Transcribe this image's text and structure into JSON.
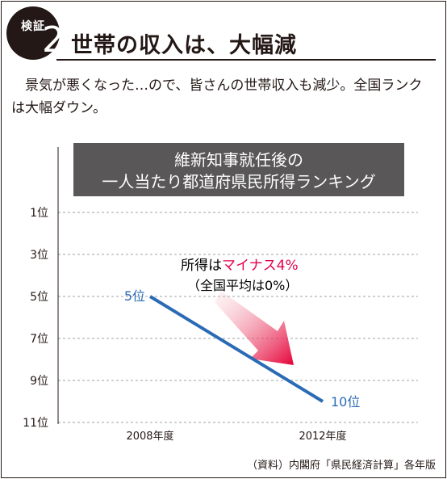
{
  "header": {
    "badge_label": "検証",
    "badge_number": "2",
    "title": "世帯の収入は、大幅減"
  },
  "lead_text": "景気が悪くなった…ので、皆さんの世帯収入も減少。全国ランクは大幅ダウン。",
  "source": "（資料）内閣府「県民経済計算」各年版",
  "colors": {
    "line": "#2a6bb5",
    "highlight": "#e5004f",
    "title_box": "#595757",
    "arrow_start": "#f6c3c9",
    "arrow_end": "#e50037",
    "text": "#231815"
  },
  "chart_data": {
    "type": "line",
    "title_lines": [
      "維新知事就任後の",
      "一人当たり都道府県民所得ランキング"
    ],
    "categories": [
      "2008年度",
      "2012年度"
    ],
    "series": [
      {
        "values": [
          5,
          10
        ],
        "point_labels": [
          "5位",
          "10位"
        ]
      }
    ],
    "y_ticks": [
      "1位",
      "3位",
      "5位",
      "7位",
      "9位",
      "11位"
    ],
    "y_tick_values": [
      1,
      3,
      5,
      7,
      9,
      11
    ],
    "ylim": [
      1,
      11
    ],
    "y_inverted": true,
    "grid": "dashed horizontal",
    "annotation": {
      "prefix": "所得は",
      "highlight": "マイナス4%",
      "line2": "（全国平均は0%）"
    },
    "arrow": "down-right"
  }
}
